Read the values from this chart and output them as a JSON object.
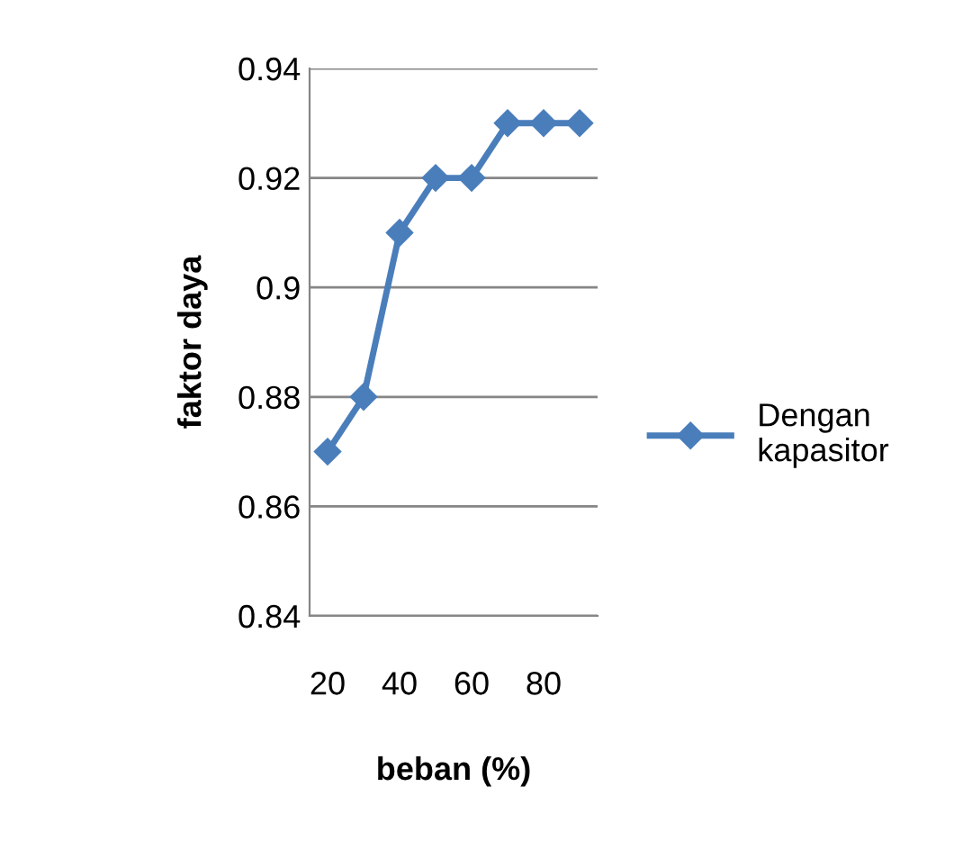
{
  "chart_data": {
    "type": "line",
    "xlabel": "beban (%)",
    "ylabel": "faktor daya",
    "categories": [
      "20",
      null,
      "40",
      null,
      "60",
      null,
      "80",
      null
    ],
    "series": [
      {
        "name": "Dengan kapasitor",
        "color": "#4a7ebb",
        "values": [
          0.87,
          0.88,
          0.91,
          0.92,
          0.92,
          0.93,
          0.93,
          0.93
        ]
      }
    ],
    "ylim": [
      0.84,
      0.94
    ],
    "yticks": [
      0.84,
      0.86,
      0.88,
      0.9,
      0.92,
      0.94
    ],
    "grid": "y",
    "legend": "right",
    "marker": "diamond",
    "line_style": "solid"
  }
}
